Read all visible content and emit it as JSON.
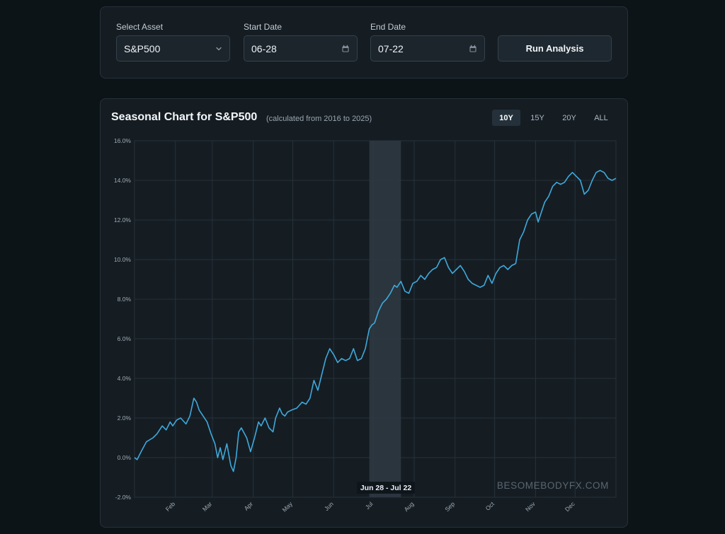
{
  "controls": {
    "asset": {
      "label": "Select Asset",
      "value": "S&P500",
      "icon": "chevron-down-icon"
    },
    "start": {
      "label": "Start Date",
      "value": "06-28",
      "icon": "calendar-icon"
    },
    "end": {
      "label": "End Date",
      "value": "07-22",
      "icon": "calendar-icon"
    },
    "run_label": "Run Analysis"
  },
  "chart": {
    "title": "Seasonal Chart for S&P500",
    "subtitle": "(calculated from 2016 to 2025)",
    "ranges": [
      {
        "label": "10Y",
        "active": true
      },
      {
        "label": "15Y",
        "active": false
      },
      {
        "label": "20Y",
        "active": false
      },
      {
        "label": "ALL",
        "active": false
      }
    ],
    "highlight_label": "Jun 28 - Jul 22",
    "watermark": "BESOMEBODYFX.COM"
  },
  "colors": {
    "line": "#3fa9dc",
    "highlight": "#2f3a43",
    "grid": "#26313a",
    "background": "#151d23"
  },
  "chart_data": {
    "type": "line",
    "title": "Seasonal Chart for S&P500",
    "subtitle": "(calculated from 2016 to 2025)",
    "xlabel": "",
    "ylabel": "",
    "ylim": [
      -2,
      16
    ],
    "yticks": [
      "-2.0%",
      "0.0%",
      "2.0%",
      "4.0%",
      "6.0%",
      "8.0%",
      "10.0%",
      "12.0%",
      "14.0%",
      "16.0%"
    ],
    "xticks": [
      "Feb",
      "Mar",
      "Apr",
      "May",
      "Jun",
      "Jul",
      "Aug",
      "Sep",
      "Oct",
      "Nov",
      "Dec"
    ],
    "xtick_days": [
      32,
      60,
      91,
      121,
      152,
      182,
      213,
      244,
      274,
      305,
      335
    ],
    "x_domain_days": [
      1,
      366
    ],
    "highlight": {
      "start_day": 179,
      "end_day": 203,
      "label": "Jun 28 - Jul 22"
    },
    "grid": true,
    "series": [
      {
        "x": [
          1,
          3,
          6,
          10,
          15,
          18,
          22,
          25,
          28,
          30,
          33,
          36,
          40,
          43,
          46,
          48,
          50,
          53,
          56,
          59,
          62,
          64,
          66,
          68,
          71,
          74,
          76,
          78,
          80,
          82,
          86,
          89,
          92,
          95,
          97,
          100,
          103,
          106,
          108,
          111,
          113,
          115,
          117,
          120,
          124,
          128,
          131,
          134,
          137,
          140,
          143,
          146,
          149,
          152,
          155,
          158,
          161,
          164,
          167,
          170,
          173,
          176,
          179,
          181,
          183,
          186,
          189,
          192,
          195,
          198,
          200,
          203,
          206,
          209,
          212,
          215,
          218,
          221,
          224,
          227,
          230,
          233,
          236,
          239,
          242,
          245,
          248,
          251,
          254,
          257,
          260,
          263,
          266,
          269,
          272,
          275,
          278,
          281,
          284,
          287,
          290,
          293,
          296,
          299,
          302,
          305,
          307,
          309,
          312,
          315,
          318,
          321,
          324,
          327,
          330,
          333,
          336,
          339,
          342,
          345,
          348,
          351,
          354,
          357,
          360,
          363,
          366
        ],
        "y": [
          0.0,
          -0.1,
          0.3,
          0.8,
          1.0,
          1.2,
          1.6,
          1.4,
          1.8,
          1.6,
          1.9,
          2.0,
          1.7,
          2.1,
          3.0,
          2.8,
          2.4,
          2.1,
          1.8,
          1.2,
          0.7,
          0.0,
          0.5,
          -0.1,
          0.7,
          -0.4,
          -0.7,
          0.0,
          1.3,
          1.5,
          1.0,
          0.3,
          1.0,
          1.8,
          1.6,
          2.0,
          1.5,
          1.3,
          2.0,
          2.5,
          2.2,
          2.1,
          2.3,
          2.4,
          2.5,
          2.8,
          2.7,
          3.0,
          3.9,
          3.4,
          4.2,
          5.0,
          5.5,
          5.2,
          4.8,
          5.0,
          4.9,
          5.0,
          5.5,
          4.9,
          5.0,
          5.5,
          6.5,
          6.7,
          6.8,
          7.4,
          7.8,
          8.0,
          8.3,
          8.7,
          8.6,
          8.9,
          8.4,
          8.3,
          8.8,
          8.9,
          9.2,
          9.0,
          9.3,
          9.5,
          9.6,
          10.0,
          10.1,
          9.6,
          9.3,
          9.5,
          9.7,
          9.4,
          9.0,
          8.8,
          8.7,
          8.6,
          8.7,
          9.2,
          8.8,
          9.3,
          9.6,
          9.7,
          9.5,
          9.7,
          9.8,
          11.0,
          11.4,
          12.0,
          12.3,
          12.4,
          11.9,
          12.3,
          12.9,
          13.2,
          13.7,
          13.9,
          13.8,
          13.9,
          14.2,
          14.4,
          14.2,
          14.0,
          13.3,
          13.5,
          14.0,
          14.4,
          14.5,
          14.4,
          14.1,
          14.0,
          14.1
        ]
      }
    ]
  }
}
